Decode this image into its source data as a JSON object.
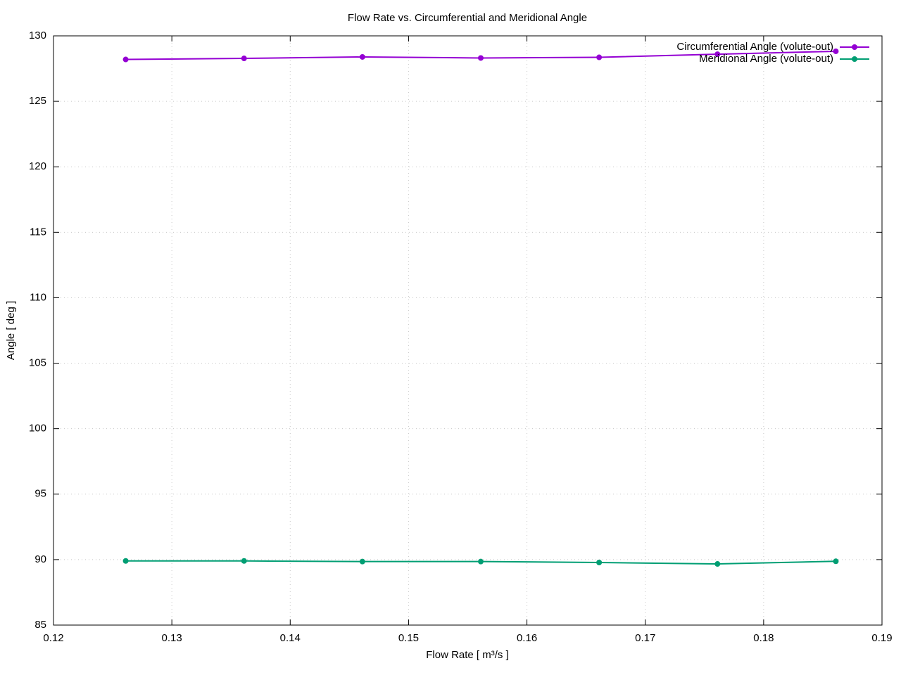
{
  "chart_data": {
    "type": "line",
    "title": "Flow Rate vs. Circumferential and Meridional Angle",
    "xlabel": "Flow Rate [ m³/s ]",
    "ylabel": "Angle [ deg ]",
    "x": [
      0.1261,
      0.1361,
      0.1461,
      0.1561,
      0.1661,
      0.1761,
      0.1861
    ],
    "series": [
      {
        "name": "Circumferential Angle (volute-out)",
        "color": "#9400d3",
        "values": [
          128.2,
          128.28,
          128.39,
          128.31,
          128.36,
          128.6,
          128.82
        ]
      },
      {
        "name": "Meridional Angle (volute-out)",
        "color": "#009e73",
        "values": [
          89.9,
          89.9,
          89.85,
          89.85,
          89.78,
          89.67,
          89.87
        ]
      }
    ],
    "xlim": [
      0.12,
      0.19
    ],
    "xticks": [
      0.12,
      0.13,
      0.14,
      0.15,
      0.16,
      0.17,
      0.18,
      0.19
    ],
    "ylim": [
      85,
      130
    ],
    "yticks": [
      85,
      90,
      95,
      100,
      105,
      110,
      115,
      120,
      125,
      130
    ],
    "grid": true,
    "legend": "top-right"
  }
}
